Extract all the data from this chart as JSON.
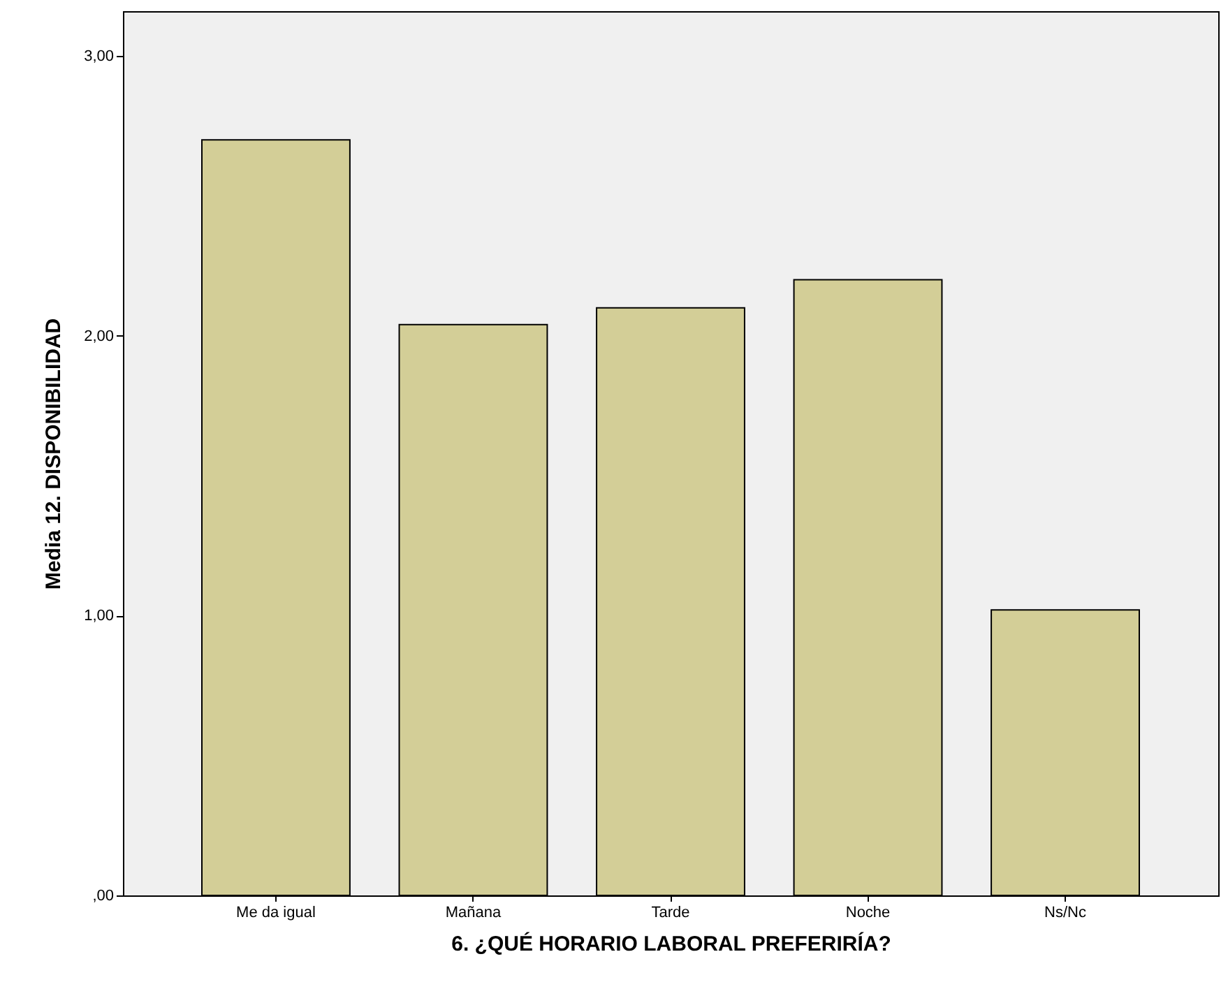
{
  "chart_data": {
    "type": "bar",
    "xlabel": "6. ¿QUÉ HORARIO LABORAL PREFERIRÍA?",
    "ylabel": "Media 12. DISPONIBILIDAD",
    "categories": [
      "Me da igual",
      "Mañana",
      "Tarde",
      "Noche",
      "Ns/Nc"
    ],
    "values": [
      2.7,
      2.04,
      2.1,
      2.2,
      1.02
    ],
    "color": "#d3ce97",
    "ylim": [
      0,
      3.16
    ],
    "yticks": [
      {
        "value": 0,
        "label": ",00"
      },
      {
        "value": 1,
        "label": "1,00"
      },
      {
        "value": 2,
        "label": "2,00"
      },
      {
        "value": 3,
        "label": "3,00"
      }
    ],
    "grid": false
  }
}
